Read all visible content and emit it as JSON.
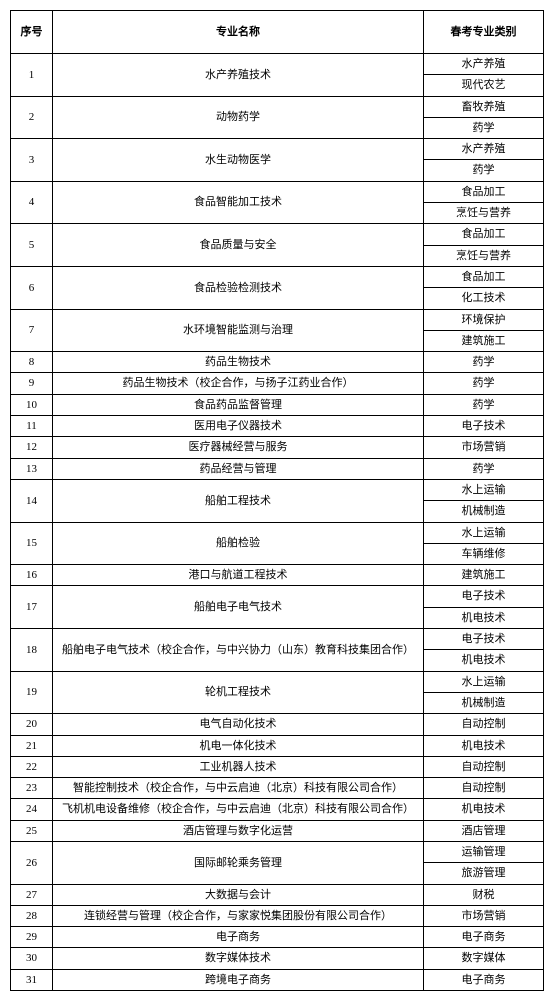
{
  "header": {
    "seq": "序号",
    "name": "专业名称",
    "cat": "春考专业类别"
  },
  "rows": [
    {
      "seq": "1",
      "name": "水产养殖技术",
      "cats": [
        "水产养殖",
        "现代农艺"
      ]
    },
    {
      "seq": "2",
      "name": "动物药学",
      "cats": [
        "畜牧养殖",
        "药学"
      ]
    },
    {
      "seq": "3",
      "name": "水生动物医学",
      "cats": [
        "水产养殖",
        "药学"
      ]
    },
    {
      "seq": "4",
      "name": "食品智能加工技术",
      "cats": [
        "食品加工",
        "烹饪与营养"
      ]
    },
    {
      "seq": "5",
      "name": "食品质量与安全",
      "cats": [
        "食品加工",
        "烹饪与营养"
      ]
    },
    {
      "seq": "6",
      "name": "食品检验检测技术",
      "cats": [
        "食品加工",
        "化工技术"
      ]
    },
    {
      "seq": "7",
      "name": "水环境智能监测与治理",
      "cats": [
        "环境保护",
        "建筑施工"
      ]
    },
    {
      "seq": "8",
      "name": "药品生物技术",
      "cats": [
        "药学"
      ]
    },
    {
      "seq": "9",
      "name": "药品生物技术（校企合作，与扬子江药业合作）",
      "cats": [
        "药学"
      ]
    },
    {
      "seq": "10",
      "name": "食品药品监督管理",
      "cats": [
        "药学"
      ]
    },
    {
      "seq": "11",
      "name": "医用电子仪器技术",
      "cats": [
        "电子技术"
      ]
    },
    {
      "seq": "12",
      "name": "医疗器械经营与服务",
      "cats": [
        "市场营销"
      ]
    },
    {
      "seq": "13",
      "name": "药品经营与管理",
      "cats": [
        "药学"
      ]
    },
    {
      "seq": "14",
      "name": "船舶工程技术",
      "cats": [
        "水上运输",
        "机械制造"
      ]
    },
    {
      "seq": "15",
      "name": "船舶检验",
      "cats": [
        "水上运输",
        "车辆维修"
      ]
    },
    {
      "seq": "16",
      "name": "港口与航道工程技术",
      "cats": [
        "建筑施工"
      ]
    },
    {
      "seq": "17",
      "name": "船舶电子电气技术",
      "cats": [
        "电子技术",
        "机电技术"
      ]
    },
    {
      "seq": "18",
      "name": "船舶电子电气技术（校企合作，与中兴协力（山东）教育科技集团合作）",
      "cats": [
        "电子技术",
        "机电技术"
      ]
    },
    {
      "seq": "19",
      "name": "轮机工程技术",
      "cats": [
        "水上运输",
        "机械制造"
      ]
    },
    {
      "seq": "20",
      "name": "电气自动化技术",
      "cats": [
        "自动控制"
      ]
    },
    {
      "seq": "21",
      "name": "机电一体化技术",
      "cats": [
        "机电技术"
      ]
    },
    {
      "seq": "22",
      "name": "工业机器人技术",
      "cats": [
        "自动控制"
      ]
    },
    {
      "seq": "23",
      "name": "智能控制技术（校企合作，与中云启迪（北京）科技有限公司合作）",
      "cats": [
        "自动控制"
      ]
    },
    {
      "seq": "24",
      "name": "飞机机电设备维修（校企合作，与中云启迪（北京）科技有限公司合作）",
      "cats": [
        "机电技术"
      ]
    },
    {
      "seq": "25",
      "name": "酒店管理与数字化运营",
      "cats": [
        "酒店管理"
      ]
    },
    {
      "seq": "26",
      "name": "国际邮轮乘务管理",
      "cats": [
        "运输管理",
        "旅游管理"
      ]
    },
    {
      "seq": "27",
      "name": "大数据与会计",
      "cats": [
        "财税"
      ]
    },
    {
      "seq": "28",
      "name": "连锁经营与管理（校企合作，与家家悦集团股份有限公司合作）",
      "cats": [
        "市场营销"
      ]
    },
    {
      "seq": "29",
      "name": "电子商务",
      "cats": [
        "电子商务"
      ]
    },
    {
      "seq": "30",
      "name": "数字媒体技术",
      "cats": [
        "数字媒体"
      ]
    },
    {
      "seq": "31",
      "name": "跨境电子商务",
      "cats": [
        "电子商务"
      ]
    }
  ]
}
